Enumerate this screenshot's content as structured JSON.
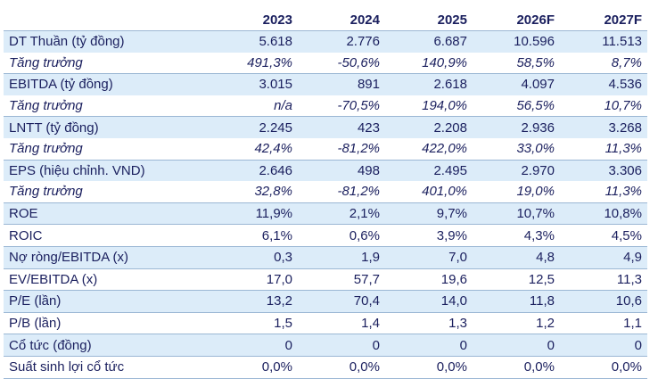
{
  "table": {
    "columns": [
      "2023",
      "2024",
      "2025",
      "2026F",
      "2027F"
    ],
    "rows": [
      {
        "label": "DT Thuần (tỷ đồng)",
        "values": [
          "5.618",
          "2.776",
          "6.687",
          "10.596",
          "11.513"
        ],
        "style": "main"
      },
      {
        "label": "Tăng trưởng",
        "values": [
          "491,3%",
          "-50,6%",
          "140,9%",
          "58,5%",
          "8,7%"
        ],
        "style": "growth"
      },
      {
        "label": "EBITDA (tỷ đồng)",
        "values": [
          "3.015",
          "891",
          "2.618",
          "4.097",
          "4.536"
        ],
        "style": "main"
      },
      {
        "label": "Tăng trưởng",
        "values": [
          "n/a",
          "-70,5%",
          "194,0%",
          "56,5%",
          "10,7%"
        ],
        "style": "growth"
      },
      {
        "label": "LNTT (tỷ đồng)",
        "values": [
          "2.245",
          "423",
          "2.208",
          "2.936",
          "3.268"
        ],
        "style": "main"
      },
      {
        "label": "Tăng trưởng",
        "values": [
          "42,4%",
          "-81,2%",
          "422,0%",
          "33,0%",
          "11,3%"
        ],
        "style": "growth"
      },
      {
        "label": "EPS (hiệu chỉnh. VND)",
        "values": [
          "2.646",
          "498",
          "2.495",
          "2.970",
          "3.306"
        ],
        "style": "main"
      },
      {
        "label": "Tăng trưởng",
        "values": [
          "32,8%",
          "-81,2%",
          "401,0%",
          "19,0%",
          "11,3%"
        ],
        "style": "growth"
      },
      {
        "label": "ROE",
        "values": [
          "11,9%",
          "2,1%",
          "9,7%",
          "10,7%",
          "10,8%"
        ],
        "style": "main"
      },
      {
        "label": "ROIC",
        "values": [
          "6,1%",
          "0,6%",
          "3,9%",
          "4,3%",
          "4,5%"
        ],
        "style": "main"
      },
      {
        "label": "Nợ ròng/EBITDA (x)",
        "values": [
          "0,3",
          "1,9",
          "7,0",
          "4,8",
          "4,9"
        ],
        "style": "main"
      },
      {
        "label": "EV/EBITDA (x)",
        "values": [
          "17,0",
          "57,7",
          "19,6",
          "12,5",
          "11,3"
        ],
        "style": "main"
      },
      {
        "label": "P/E (lần)",
        "values": [
          "13,2",
          "70,4",
          "14,0",
          "11,8",
          "10,6"
        ],
        "style": "main"
      },
      {
        "label": "P/B (lần)",
        "values": [
          "1,5",
          "1,4",
          "1,3",
          "1,2",
          "1,1"
        ],
        "style": "main"
      },
      {
        "label": "Cổ tức (đồng)",
        "values": [
          "0",
          "0",
          "0",
          "0",
          "0"
        ],
        "style": "main"
      },
      {
        "label": "Suất sinh lợi cổ tức",
        "values": [
          "0,0%",
          "0,0%",
          "0,0%",
          "0,0%",
          "0,0%"
        ],
        "style": "main"
      }
    ]
  },
  "colors": {
    "text": "#1a1f5e",
    "shade": "#dcecf9",
    "rule": "#9bb7d4"
  }
}
